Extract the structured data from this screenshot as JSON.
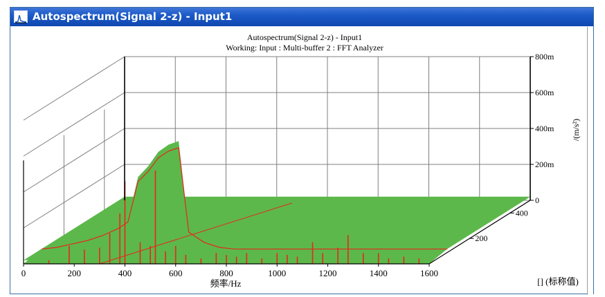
{
  "window": {
    "title": "Autospectrum(Signal 2-z) - Input1"
  },
  "chart_data": {
    "type": "area",
    "title": "Autospectrum(Signal 2-z) - Input1",
    "subtitle": "Working: Input : Multi-buffer 2 : FFT Analyzer",
    "xlabel": "频率/Hz",
    "ylabel": "/(m/s²)",
    "zlabel": "[] (标称值)",
    "xlim": [
      0,
      1600
    ],
    "ylim": [
      0,
      0.8
    ],
    "zlim": [
      0,
      500
    ],
    "x_ticks": [
      "0",
      "200",
      "400",
      "600",
      "800",
      "1000",
      "1200",
      "1400",
      "1600"
    ],
    "y_ticks": [
      "0",
      "200m",
      "400m",
      "600m",
      "800m"
    ],
    "z_ticks": [
      "200",
      "400"
    ],
    "colors": {
      "surface": "#5cb84a",
      "slice": "#e8261d",
      "grid": "#7f7f7f",
      "axis": "#000000"
    },
    "series": [
      {
        "name": "",
        "x": [
          0,
          60,
          120,
          180,
          240,
          300,
          340,
          380,
          420,
          460,
          500,
          540,
          580,
          640,
          700,
          760,
          800,
          900,
          1000,
          1100,
          1200,
          1300,
          1400,
          1500,
          1600
        ],
        "values": [
          0.02,
          0.03,
          0.05,
          0.07,
          0.1,
          0.14,
          0.18,
          0.42,
          0.48,
          0.56,
          0.6,
          0.62,
          0.12,
          0.06,
          0.03,
          0.02,
          0.02,
          0.02,
          0.02,
          0.02,
          0.02,
          0.02,
          0.02,
          0.02,
          0.02
        ]
      }
    ],
    "slice_peaks": {
      "x": [
        100,
        180,
        240,
        300,
        340,
        380,
        400,
        460,
        500,
        520,
        560,
        600,
        640,
        700,
        760,
        800,
        840,
        880,
        940,
        1000,
        1040,
        1080,
        1140,
        1180,
        1240,
        1280,
        1340,
        1400,
        1440,
        1500,
        1560
      ],
      "values": [
        0.02,
        0.1,
        0.08,
        0.09,
        0.17,
        0.28,
        0.46,
        0.12,
        0.1,
        0.52,
        0.07,
        0.1,
        0.05,
        0.03,
        0.06,
        0.05,
        0.04,
        0.06,
        0.03,
        0.06,
        0.05,
        0.04,
        0.12,
        0.06,
        0.09,
        0.16,
        0.06,
        0.06,
        0.03,
        0.04,
        0.03
      ]
    }
  }
}
